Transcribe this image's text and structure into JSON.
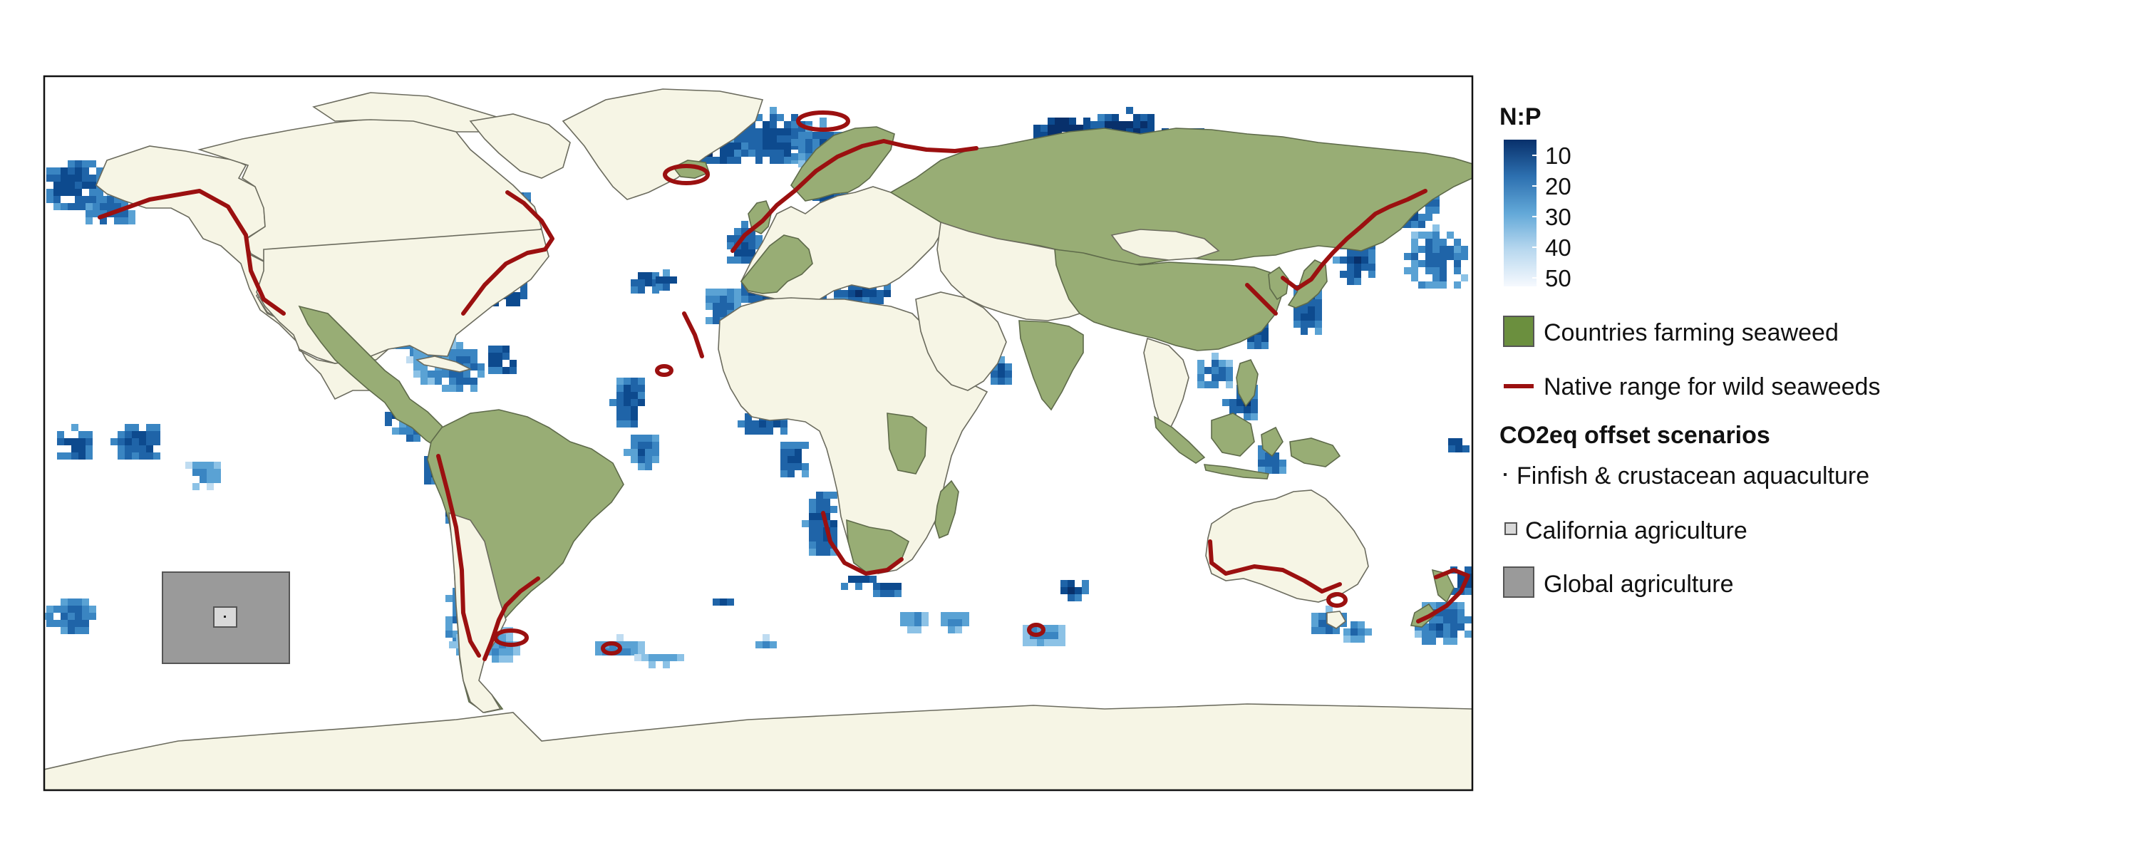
{
  "legend": {
    "np_title": "N:P",
    "np_ticks": [
      "10",
      "20",
      "30",
      "40",
      "50"
    ],
    "countries_farming_label": "Countries farming seaweed",
    "native_range_label": "Native range for wild seaweeds",
    "offset_title": "CO2eq offset scenarios",
    "finfish_label": "Finfish & crustacean aquaculture",
    "california_label": "California agriculture",
    "global_label": "Global agriculture"
  },
  "colors": {
    "ocean_background": "#ffffff",
    "land": "#f6f5e5",
    "farming_countries": "#98ad75",
    "farming_legend": "#6b8f3e",
    "native_range": "#9b1010",
    "np_low": "#08306b",
    "np_mid": "#4f9bd0",
    "np_high": "#f4f8fd",
    "global_agriculture": "#9a9a9a",
    "california_agriculture": "#d9d9d9"
  },
  "np_scale": {
    "min": 5,
    "max": 52
  }
}
